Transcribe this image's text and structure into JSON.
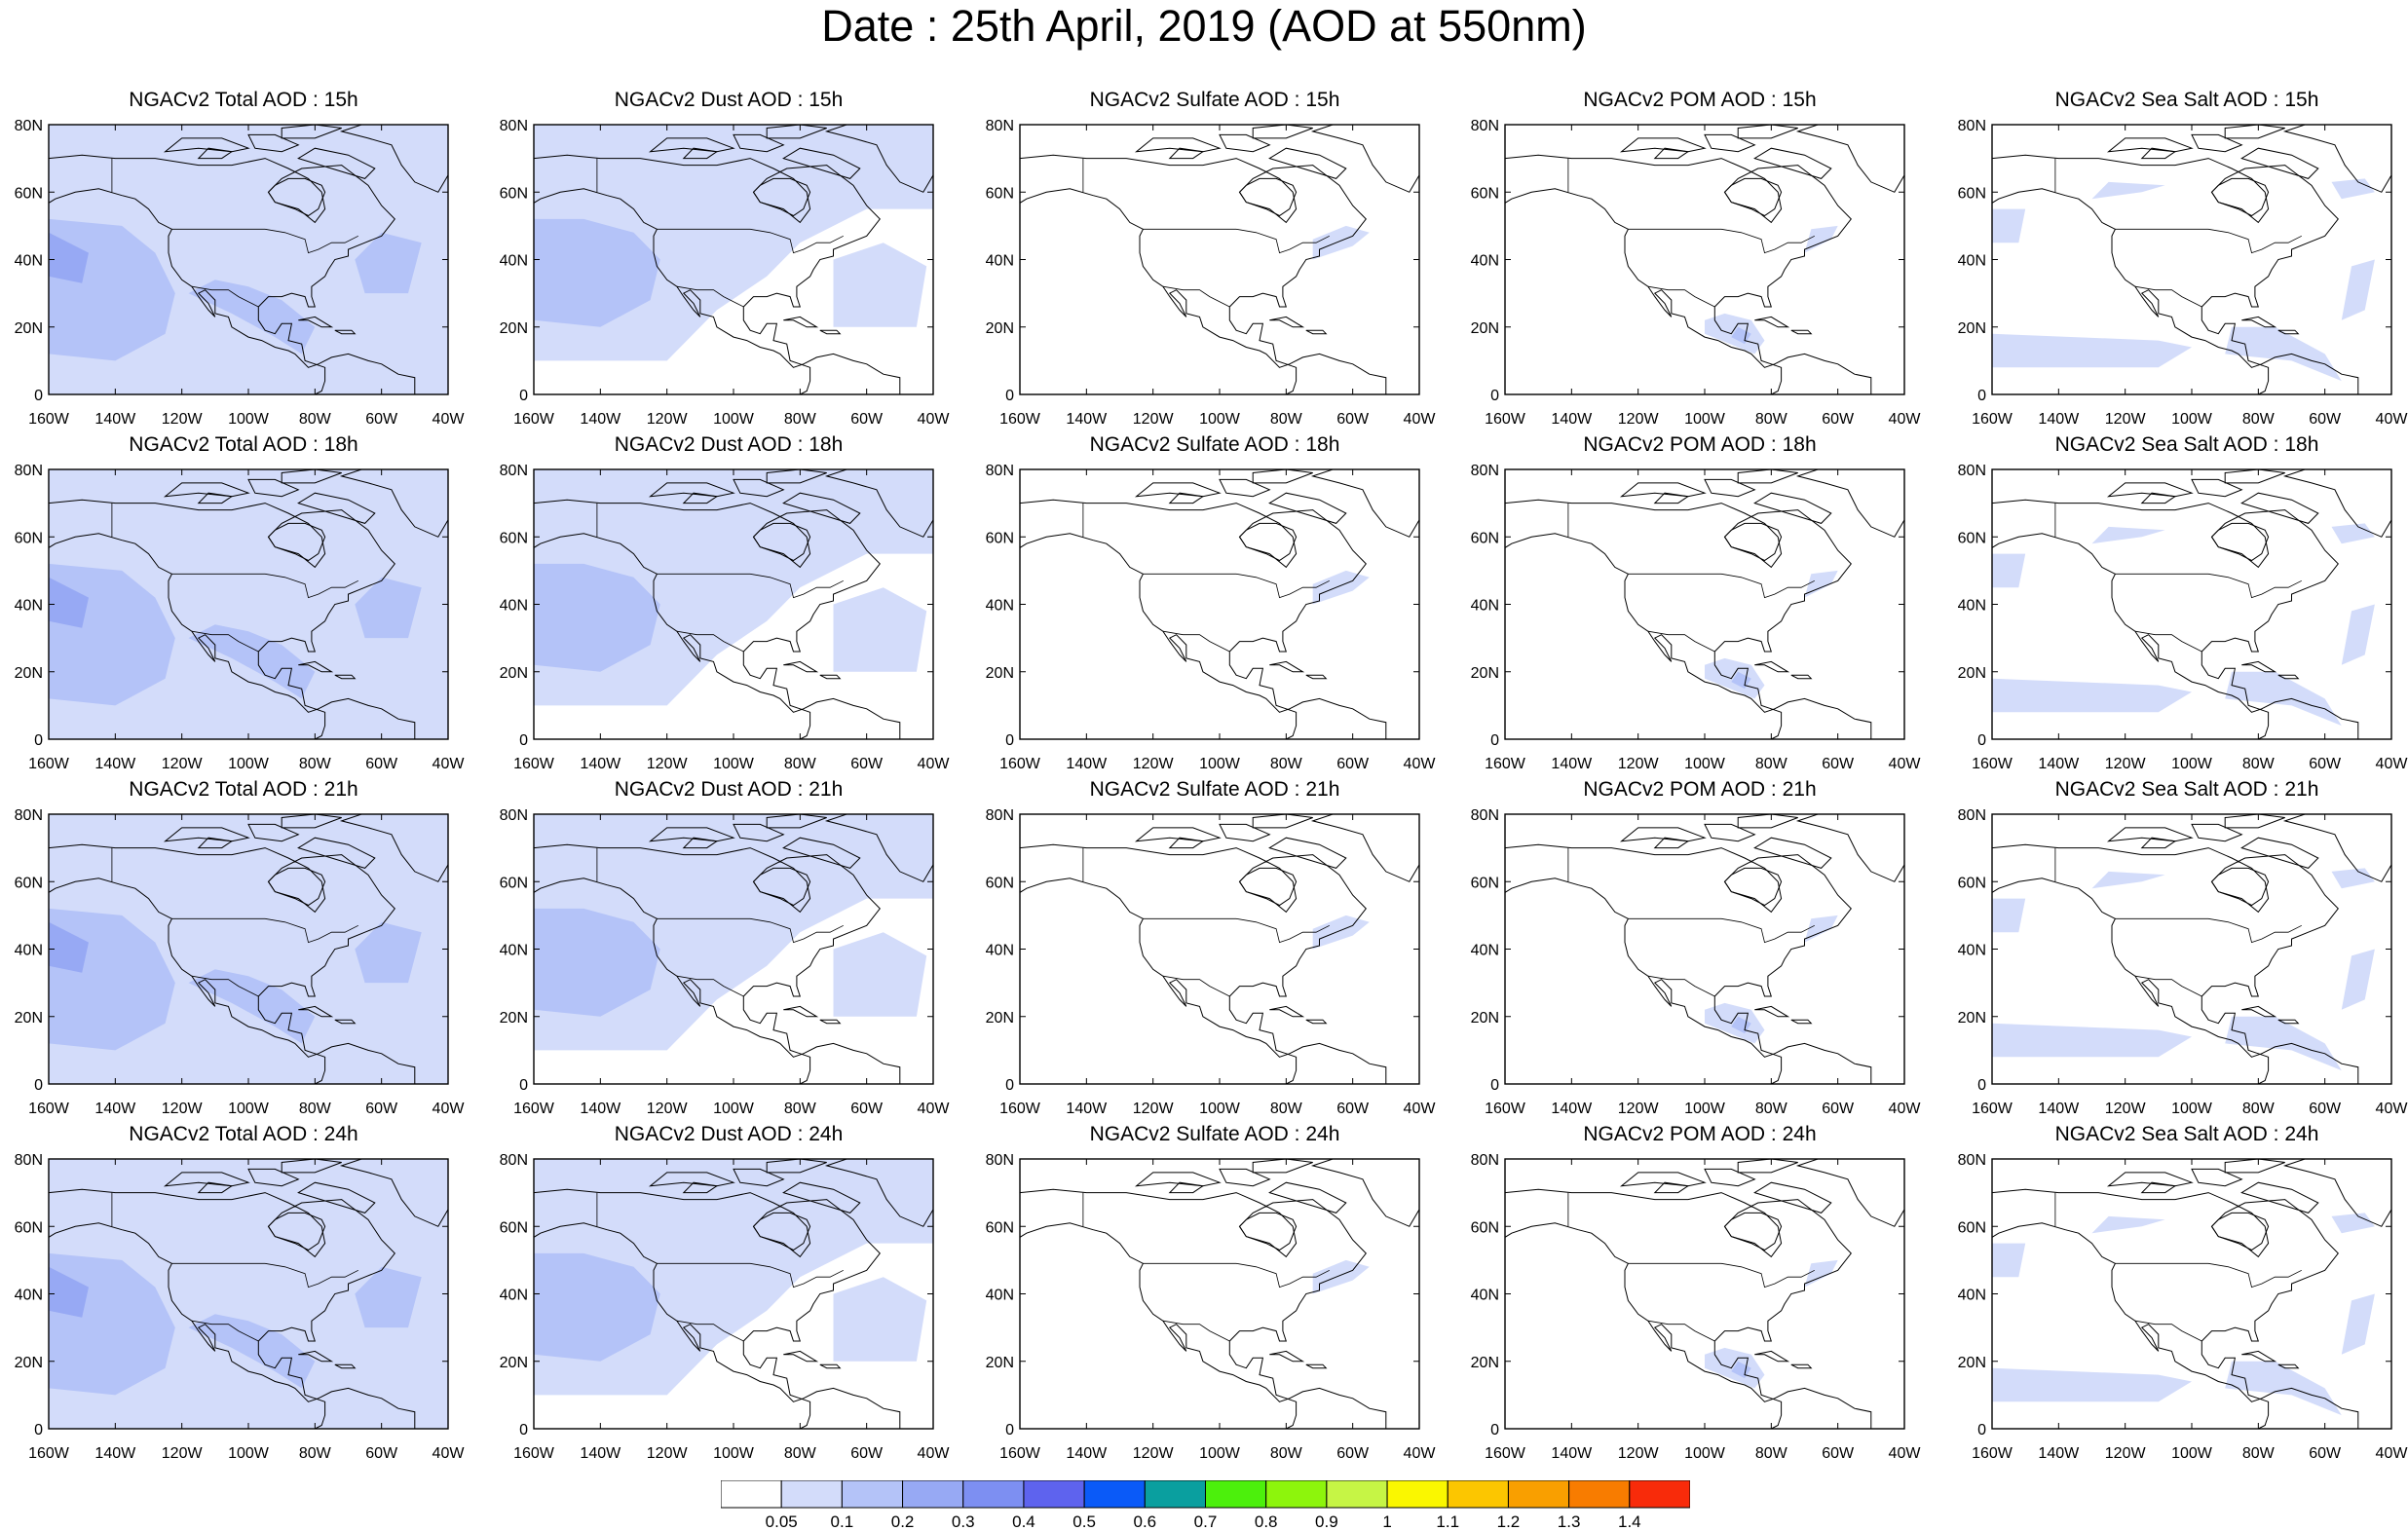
{
  "title": "Date : 25th April, 2019 (AOD at 550nm)",
  "rows": [
    {
      "hour": "15h",
      "panels": [
        {
          "title": "NGACv2 Total AOD : 15h",
          "kind": "total"
        },
        {
          "title": "NGACv2 Dust AOD : 15h",
          "kind": "dust"
        },
        {
          "title": "NGACv2 Sulfate AOD : 15h",
          "kind": "sulfate"
        },
        {
          "title": "NGACv2 POM AOD : 15h",
          "kind": "pom"
        },
        {
          "title": "NGACv2 Sea Salt AOD : 15h",
          "kind": "seasalt"
        }
      ]
    },
    {
      "hour": "18h",
      "panels": [
        {
          "title": "NGACv2 Total AOD : 18h",
          "kind": "total"
        },
        {
          "title": "NGACv2 Dust AOD : 18h",
          "kind": "dust"
        },
        {
          "title": "NGACv2 Sulfate AOD : 18h",
          "kind": "sulfate"
        },
        {
          "title": "NGACv2 POM AOD : 18h",
          "kind": "pom"
        },
        {
          "title": "NGACv2 Sea Salt AOD : 18h",
          "kind": "seasalt"
        }
      ]
    },
    {
      "hour": "21h",
      "panels": [
        {
          "title": "NGACv2 Total AOD : 21h",
          "kind": "total"
        },
        {
          "title": "NGACv2 Dust AOD : 21h",
          "kind": "dust"
        },
        {
          "title": "NGACv2 Sulfate AOD : 21h",
          "kind": "sulfate"
        },
        {
          "title": "NGACv2 POM AOD : 21h",
          "kind": "pom"
        },
        {
          "title": "NGACv2 Sea Salt AOD : 21h",
          "kind": "seasalt"
        }
      ]
    },
    {
      "hour": "24h",
      "panels": [
        {
          "title": "NGACv2 Total AOD : 24h",
          "kind": "total"
        },
        {
          "title": "NGACv2 Dust AOD : 24h",
          "kind": "dust"
        },
        {
          "title": "NGACv2 Sulfate AOD : 24h",
          "kind": "sulfate"
        },
        {
          "title": "NGACv2 POM AOD : 24h",
          "kind": "pom"
        },
        {
          "title": "NGACv2 Sea Salt  AOD : 24h",
          "kind": "seasalt"
        }
      ]
    }
  ],
  "axes": {
    "lon_ticks": [
      "160W",
      "140W",
      "120W",
      "100W",
      "80W",
      "60W",
      "40W"
    ],
    "lat_ticks": [
      "0",
      "20N",
      "40N",
      "60N",
      "80N"
    ],
    "lon_range": [
      -160,
      -40
    ],
    "lat_range": [
      0,
      80
    ]
  },
  "colorbar": {
    "labels": [
      "0.05",
      "0.1",
      "0.2",
      "0.3",
      "0.4",
      "0.5",
      "0.6",
      "0.7",
      "0.8",
      "0.9",
      "1",
      "1.1",
      "1.2",
      "1.3",
      "1.4"
    ],
    "colors": [
      "#ffffff",
      "#d3dcfa",
      "#b4c3f8",
      "#97a9f4",
      "#7d8ff2",
      "#5e63ee",
      "#0a5af8",
      "#0a9f9f",
      "#4cf00c",
      "#8df50c",
      "#c6f545",
      "#faf700",
      "#fcc600",
      "#f99f00",
      "#f87c00",
      "#f82b0a"
    ]
  },
  "palette": {
    "level1": "#d3dcfa",
    "level2": "#b4c3f8",
    "level3": "#97a9f4",
    "coast": "#000000"
  }
}
